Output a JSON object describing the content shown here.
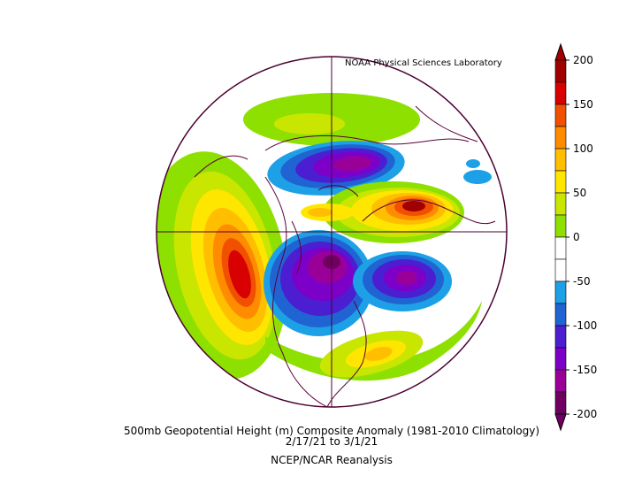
{
  "credit": "NOAA Physical Sciences Laboratory",
  "caption": {
    "title": "500mb Geopotential Height (m) Composite Anomaly (1981-2010 Climatology)",
    "date_range": "2/17/21   to 3/1/21",
    "source": "NCEP/NCAR Reanalysis"
  },
  "colorbar": {
    "labels": [
      "200",
      "150",
      "100",
      "50",
      "0",
      "-50",
      "-100",
      "-150",
      "-200"
    ],
    "colors": [
      "#6f0060",
      "#9a0098",
      "#7d00c8",
      "#4b1ed2",
      "#1f64d2",
      "#1ea0e6",
      "#ffffff",
      "#ffffff",
      "#8ee000",
      "#c8e600",
      "#ffe600",
      "#ffbe00",
      "#ff8c00",
      "#f05000",
      "#d80000",
      "#a00000"
    ]
  },
  "map": {
    "projection": "north polar stereographic",
    "features": [
      "Strong positive anomaly over the eastern North Pacific",
      "Negative anomaly over Canada and central North America",
      "Negative anomaly over the central North Atlantic",
      "Positive anomaly over northern Europe / Scandinavia",
      "Negative anomaly over the Arctic north of Eurasia"
    ]
  }
}
